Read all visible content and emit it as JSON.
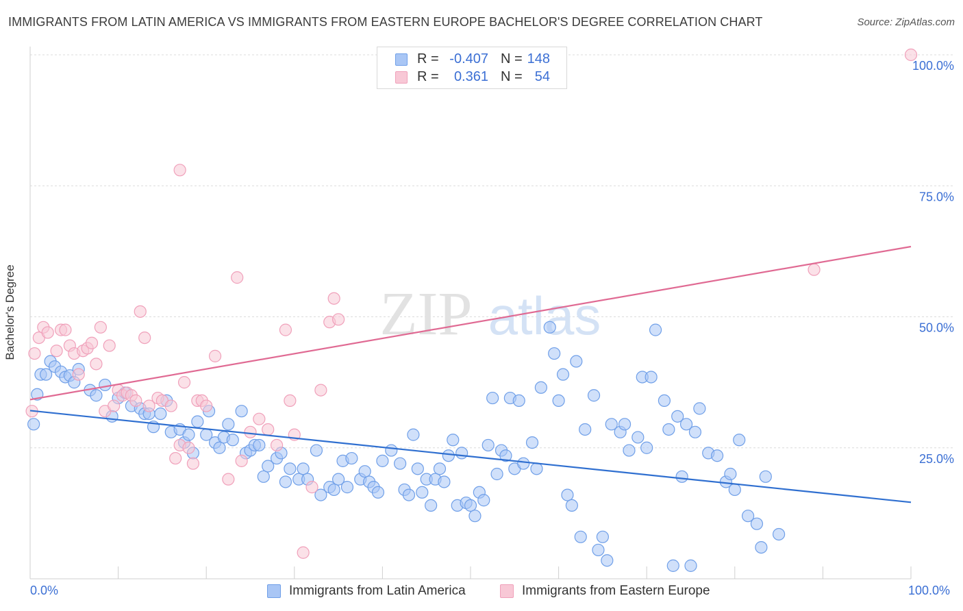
{
  "header": {
    "title": "IMMIGRANTS FROM LATIN AMERICA VS IMMIGRANTS FROM EASTERN EUROPE BACHELOR'S DEGREE CORRELATION CHART",
    "source": "Source: ZipAtlas.com"
  },
  "watermark": {
    "zip": "ZIP",
    "atlas": "atlas"
  },
  "legend": {
    "r_label": "R =",
    "n_label": "N =",
    "rows": [
      {
        "r": "-0.407",
        "n": "148"
      },
      {
        "r": "0.361",
        "n": "54"
      }
    ]
  },
  "axis_labels": {
    "x_left": "0.0%",
    "x_right": "100.0%",
    "y_ticks": [
      "100.0%",
      "75.0%",
      "50.0%",
      "25.0%"
    ]
  },
  "chart_data": {
    "type": "scatter",
    "title": "IMMIGRANTS FROM LATIN AMERICA VS IMMIGRANTS FROM EASTERN EUROPE BACHELOR'S DEGREE CORRELATION CHART",
    "xlabel": "",
    "ylabel": "Bachelor's Degree",
    "xlim": [
      0,
      100
    ],
    "ylim": [
      0,
      100
    ],
    "grid": "horizontal dashed",
    "legend_placement": "top-center",
    "series": [
      {
        "name": "Immigrants from Latin America",
        "color": "#6f9fe8",
        "fill": "#a9c6f5",
        "line_color": "#2f6fd0",
        "r": -0.407,
        "n": 148,
        "trend": {
          "x": [
            0,
            100
          ],
          "y": [
            32.1,
            14.6
          ]
        },
        "points": [
          [
            0.4,
            29.5
          ],
          [
            0.8,
            35.2
          ],
          [
            1.2,
            39.0
          ],
          [
            1.8,
            39.0
          ],
          [
            2.3,
            41.5
          ],
          [
            2.8,
            40.5
          ],
          [
            3.5,
            39.5
          ],
          [
            4.0,
            38.5
          ],
          [
            4.5,
            38.8
          ],
          [
            5.5,
            40.0
          ],
          [
            5.0,
            37.5
          ],
          [
            6.8,
            36.0
          ],
          [
            7.5,
            35.0
          ],
          [
            8.5,
            37.0
          ],
          [
            9.3,
            31.0
          ],
          [
            10.0,
            34.5
          ],
          [
            10.8,
            35.5
          ],
          [
            11.5,
            33.0
          ],
          [
            12.5,
            32.5
          ],
          [
            13.0,
            31.5
          ],
          [
            13.5,
            31.5
          ],
          [
            14.0,
            29.0
          ],
          [
            14.8,
            31.5
          ],
          [
            15.5,
            34.0
          ],
          [
            16.0,
            28.0
          ],
          [
            17.0,
            28.5
          ],
          [
            17.5,
            26.0
          ],
          [
            18.0,
            27.5
          ],
          [
            18.5,
            24.0
          ],
          [
            19.0,
            30.0
          ],
          [
            20.0,
            27.5
          ],
          [
            20.3,
            32.0
          ],
          [
            21.0,
            26.0
          ],
          [
            21.5,
            25.0
          ],
          [
            22.0,
            27.0
          ],
          [
            22.5,
            29.5
          ],
          [
            23.0,
            26.5
          ],
          [
            24.0,
            32.0
          ],
          [
            24.5,
            24.0
          ],
          [
            25.0,
            24.5
          ],
          [
            25.5,
            25.5
          ],
          [
            26.0,
            25.5
          ],
          [
            26.5,
            19.5
          ],
          [
            27.0,
            21.5
          ],
          [
            28.0,
            23.0
          ],
          [
            28.5,
            24.0
          ],
          [
            29.0,
            18.5
          ],
          [
            29.5,
            21.0
          ],
          [
            30.5,
            19.0
          ],
          [
            31.0,
            21.0
          ],
          [
            31.5,
            19.0
          ],
          [
            32.5,
            24.5
          ],
          [
            33.0,
            16.0
          ],
          [
            34.0,
            17.5
          ],
          [
            34.5,
            17.0
          ],
          [
            35.0,
            19.0
          ],
          [
            35.5,
            22.5
          ],
          [
            36.0,
            17.5
          ],
          [
            36.5,
            23.0
          ],
          [
            37.5,
            19.0
          ],
          [
            38.0,
            20.5
          ],
          [
            38.5,
            18.5
          ],
          [
            39.0,
            17.5
          ],
          [
            39.5,
            16.5
          ],
          [
            40.0,
            22.5
          ],
          [
            41.0,
            24.5
          ],
          [
            42.0,
            22.0
          ],
          [
            42.5,
            17.0
          ],
          [
            43.0,
            16.0
          ],
          [
            43.5,
            27.5
          ],
          [
            44.0,
            21.0
          ],
          [
            44.5,
            16.5
          ],
          [
            45.0,
            19.0
          ],
          [
            45.5,
            14.0
          ],
          [
            46.0,
            19.0
          ],
          [
            46.5,
            21.0
          ],
          [
            47.0,
            18.5
          ],
          [
            47.5,
            23.5
          ],
          [
            48.0,
            26.5
          ],
          [
            48.5,
            14.0
          ],
          [
            49.0,
            24.0
          ],
          [
            49.5,
            14.5
          ],
          [
            50.0,
            14.0
          ],
          [
            50.5,
            12.0
          ],
          [
            51.0,
            16.5
          ],
          [
            51.5,
            15.0
          ],
          [
            52.0,
            25.5
          ],
          [
            52.5,
            34.5
          ],
          [
            53.0,
            20.0
          ],
          [
            53.5,
            24.5
          ],
          [
            54.0,
            23.5
          ],
          [
            54.5,
            34.5
          ],
          [
            55.0,
            21.0
          ],
          [
            55.5,
            34.0
          ],
          [
            56.0,
            22.0
          ],
          [
            57.0,
            26.0
          ],
          [
            57.5,
            21.0
          ],
          [
            58.0,
            36.5
          ],
          [
            59.0,
            48.0
          ],
          [
            59.5,
            43.0
          ],
          [
            60.0,
            34.0
          ],
          [
            60.5,
            39.0
          ],
          [
            61.0,
            16.0
          ],
          [
            61.5,
            14.0
          ],
          [
            62.0,
            41.5
          ],
          [
            62.5,
            8.0
          ],
          [
            63.0,
            28.5
          ],
          [
            64.0,
            35.0
          ],
          [
            64.5,
            5.5
          ],
          [
            65.0,
            8.0
          ],
          [
            65.5,
            3.5
          ],
          [
            66.0,
            29.5
          ],
          [
            67.0,
            28.0
          ],
          [
            67.5,
            29.5
          ],
          [
            68.0,
            24.5
          ],
          [
            69.0,
            27.0
          ],
          [
            69.5,
            38.5
          ],
          [
            70.0,
            25.0
          ],
          [
            70.5,
            38.5
          ],
          [
            71.0,
            47.5
          ],
          [
            72.0,
            34.0
          ],
          [
            72.5,
            28.5
          ],
          [
            73.0,
            2.5
          ],
          [
            73.5,
            31.0
          ],
          [
            74.0,
            19.5
          ],
          [
            74.5,
            29.5
          ],
          [
            75.0,
            2.5
          ],
          [
            75.5,
            28.0
          ],
          [
            76.0,
            32.5
          ],
          [
            77.0,
            24.0
          ],
          [
            78.0,
            23.5
          ],
          [
            79.0,
            18.5
          ],
          [
            79.5,
            20.0
          ],
          [
            80.0,
            17.0
          ],
          [
            80.5,
            26.5
          ],
          [
            81.5,
            12.0
          ],
          [
            82.5,
            10.5
          ],
          [
            83.0,
            6.0
          ],
          [
            83.5,
            19.5
          ],
          [
            85.0,
            8.5
          ]
        ]
      },
      {
        "name": "Immigrants from Eastern Europe",
        "color": "#f0a0ba",
        "fill": "#f8c8d6",
        "line_color": "#e06a93",
        "r": 0.361,
        "n": 54,
        "trend": {
          "x": [
            0,
            100
          ],
          "y": [
            34.2,
            63.4
          ]
        },
        "points": [
          [
            0.2,
            32.0
          ],
          [
            0.5,
            43.0
          ],
          [
            1.0,
            46.0
          ],
          [
            1.5,
            48.0
          ],
          [
            2.0,
            47.0
          ],
          [
            3.0,
            43.5
          ],
          [
            3.5,
            47.5
          ],
          [
            4.0,
            47.5
          ],
          [
            4.5,
            44.5
          ],
          [
            5.0,
            43.0
          ],
          [
            5.5,
            39.0
          ],
          [
            6.0,
            43.5
          ],
          [
            6.5,
            44.0
          ],
          [
            7.0,
            45.0
          ],
          [
            7.5,
            41.0
          ],
          [
            8.0,
            48.0
          ],
          [
            8.5,
            32.0
          ],
          [
            9.0,
            44.5
          ],
          [
            9.5,
            33.0
          ],
          [
            10.0,
            36.0
          ],
          [
            10.5,
            35.0
          ],
          [
            11.0,
            35.5
          ],
          [
            11.5,
            35.0
          ],
          [
            12.0,
            34.0
          ],
          [
            12.5,
            51.0
          ],
          [
            13.0,
            46.0
          ],
          [
            13.5,
            33.0
          ],
          [
            14.5,
            34.5
          ],
          [
            15.0,
            34.0
          ],
          [
            16.0,
            33.0
          ],
          [
            16.5,
            23.0
          ],
          [
            17.0,
            25.5
          ],
          [
            17.5,
            37.5
          ],
          [
            18.0,
            25.0
          ],
          [
            18.5,
            22.0
          ],
          [
            19.0,
            34.0
          ],
          [
            19.5,
            34.0
          ],
          [
            20.0,
            33.0
          ],
          [
            21.0,
            42.5
          ],
          [
            22.5,
            19.0
          ],
          [
            23.5,
            57.5
          ],
          [
            24.0,
            22.5
          ],
          [
            25.0,
            28.0
          ],
          [
            26.0,
            30.5
          ],
          [
            27.0,
            28.5
          ],
          [
            28.0,
            25.5
          ],
          [
            29.0,
            47.5
          ],
          [
            29.5,
            34.0
          ],
          [
            30.0,
            27.5
          ],
          [
            31.0,
            5.0
          ],
          [
            32.0,
            17.5
          ],
          [
            33.0,
            36.0
          ],
          [
            34.0,
            49.0
          ],
          [
            34.5,
            53.5
          ],
          [
            35.0,
            49.5
          ],
          [
            17.0,
            78.0
          ],
          [
            89.0,
            59.0
          ],
          [
            100.0,
            100.0
          ]
        ]
      }
    ]
  },
  "bottom_legend": {
    "items": [
      {
        "label": "Immigrants from Latin America"
      },
      {
        "label": "Immigrants from Eastern Europe"
      }
    ]
  }
}
